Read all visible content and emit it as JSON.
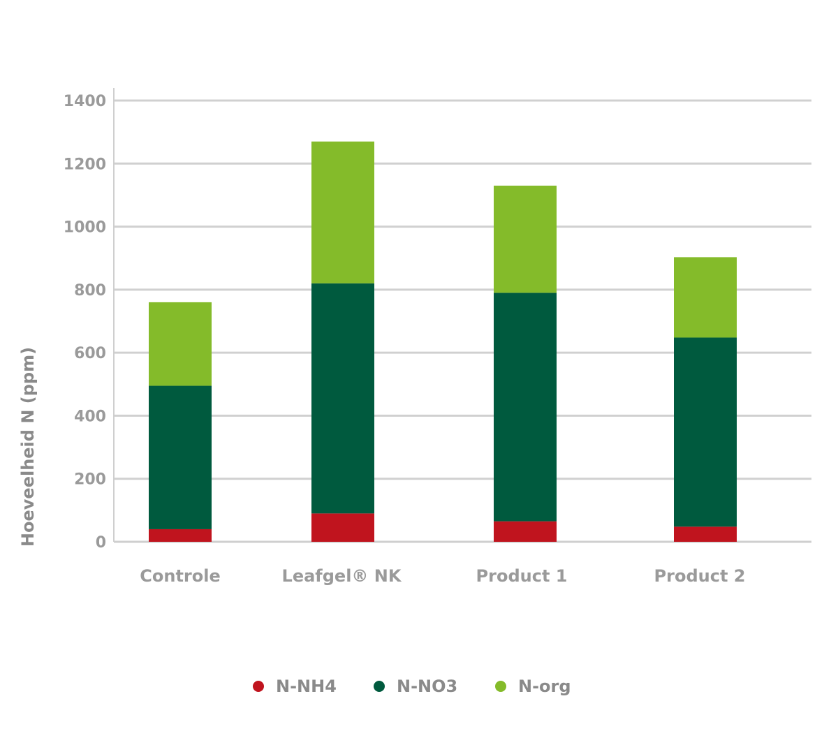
{
  "chart_data": {
    "type": "bar",
    "stacked": true,
    "title": "",
    "xlabel": "",
    "ylabel": "Hoeveelheid N (ppm)",
    "ylim": [
      0,
      1400
    ],
    "yticks": [
      0,
      200,
      400,
      600,
      800,
      1000,
      1200,
      1400
    ],
    "grid": true,
    "legend_position": "bottom",
    "categories": [
      "Controle",
      "Leafgel® NK",
      "Product 1",
      "Product 2"
    ],
    "series": [
      {
        "name": "N-NH4",
        "color": "#c0141e",
        "values": [
          40,
          90,
          65,
          48
        ]
      },
      {
        "name": "N-NO3",
        "color": "#005a3e",
        "values": [
          455,
          730,
          725,
          600
        ]
      },
      {
        "name": "N-org",
        "color": "#84bb2a",
        "values": [
          265,
          450,
          340,
          255
        ]
      }
    ]
  }
}
